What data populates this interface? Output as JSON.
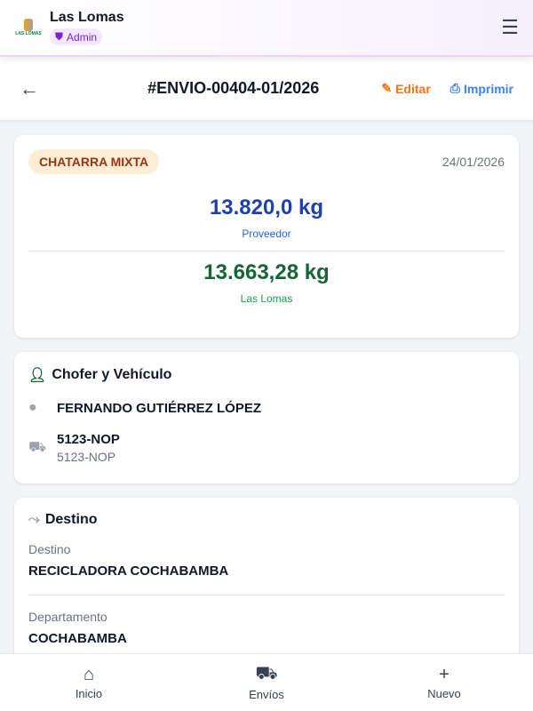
{
  "header": {
    "brand": "Las Lomas",
    "logo_text": "LAS LOMAS",
    "role": "Admin"
  },
  "subheader": {
    "title": "#ENVIO-00404-01/2026",
    "edit": "Editar",
    "print": "Imprimir"
  },
  "summary": {
    "material": "CHATARRA MIXTA",
    "date": "24/01/2026",
    "weight_provider": "13.820,0 kg",
    "provider_label": "Proveedor",
    "weight_company": "13.663,28 kg",
    "company_label": "Las Lomas"
  },
  "driver": {
    "section": "Chofer y Vehículo",
    "name": "FERNANDO GUTIÉRREZ LÓPEZ",
    "plate": "5123-NOP",
    "plate_sub": "5123-NOP"
  },
  "destination": {
    "section": "Destino",
    "dest_label": "Destino",
    "dest": "RECICLADORA COCHABAMBA",
    "dept_label": "Departamento",
    "dept": "COCHABAMBA"
  },
  "nav": [
    {
      "label": "Inicio"
    },
    {
      "label": "Envíos"
    },
    {
      "label": "Nuevo"
    }
  ],
  "colors": {
    "provider": "#1e40af",
    "company": "#166534",
    "accent_edit": "#f97316",
    "accent_print": "#3b82f6"
  }
}
